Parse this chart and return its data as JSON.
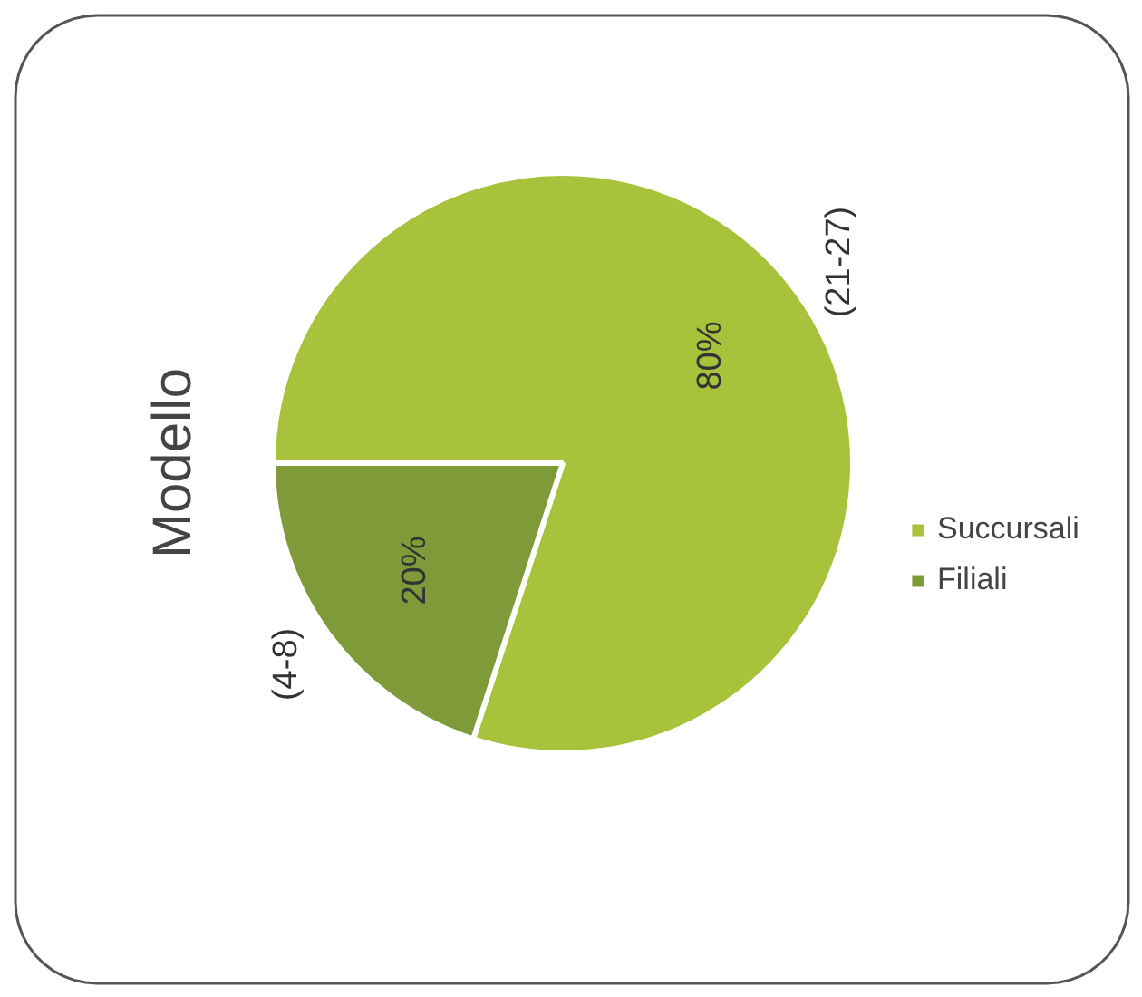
{
  "chart_data": {
    "type": "pie",
    "title": "Modello",
    "categories": [
      "Succursali",
      "Filiali"
    ],
    "values": [
      80,
      20
    ],
    "colors": [
      "#a9c23c",
      "#7f9a38"
    ],
    "value_labels": [
      "80%",
      "20%"
    ],
    "legend": "right",
    "annotations": [
      "(21-27)",
      "(4-8)"
    ]
  }
}
